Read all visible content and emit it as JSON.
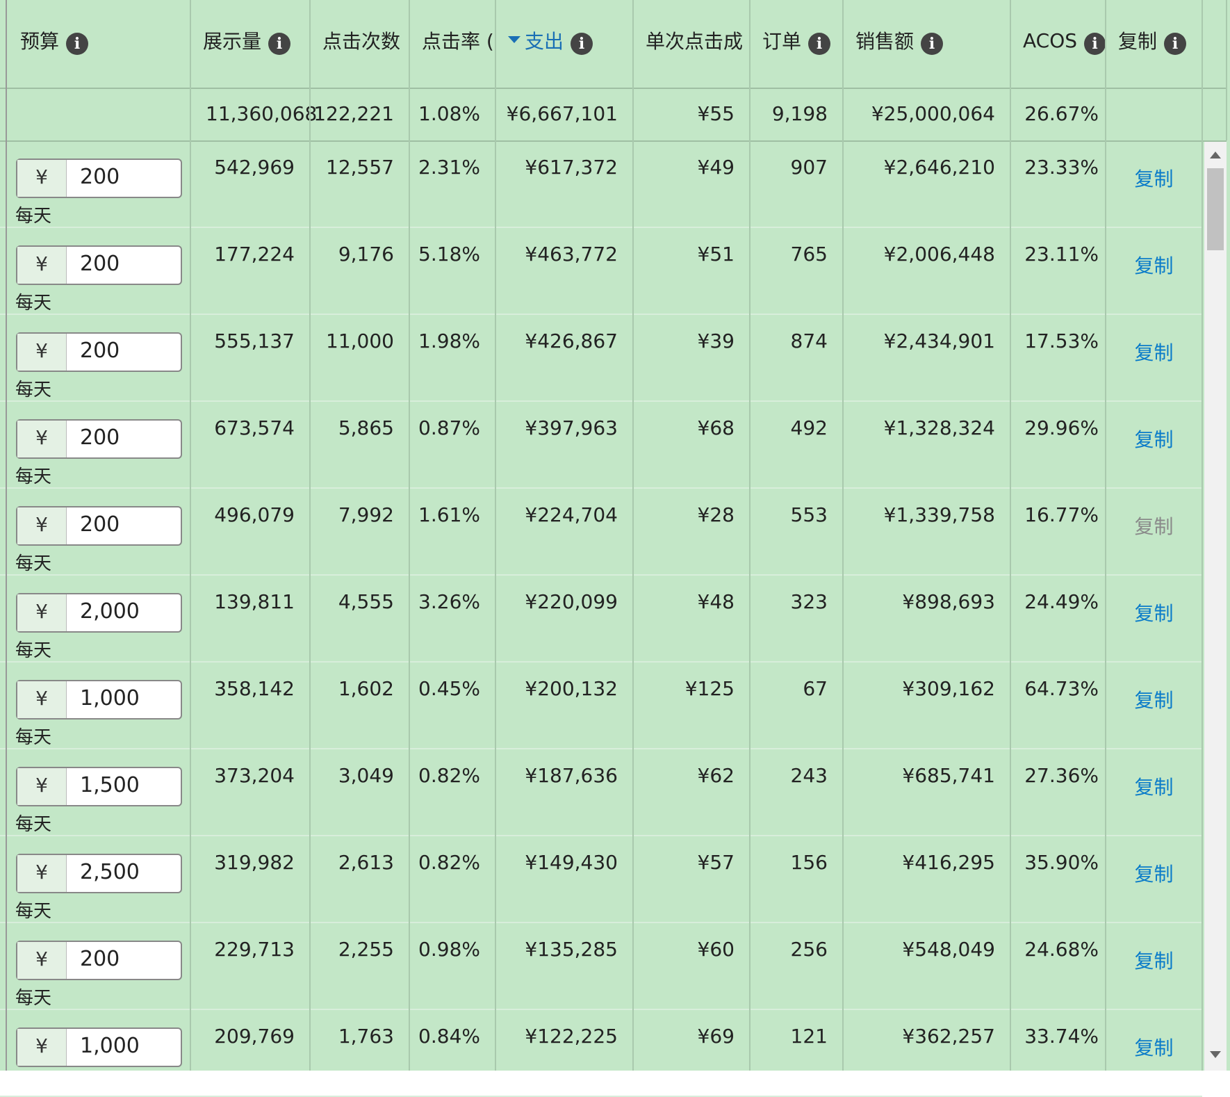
{
  "currency": "¥",
  "header": [
    "预算",
    "展示量",
    "点击次数",
    "点击率 (",
    "支出",
    "单次点击成",
    "订单",
    "销售额",
    "ACOS",
    "复制"
  ],
  "totals": [
    "11,360,068",
    "122,221",
    "1.08%",
    "¥6,667,101",
    "¥55",
    "9,198",
    "¥25,000,064",
    "26.67%"
  ],
  "rows": [
    {
      "budget": "200",
      "period": "每天",
      "cells": [
        "542,969",
        "12,557",
        "2.31%",
        "¥617,372",
        "¥49",
        "907",
        "¥2,646,210",
        "23.33%"
      ],
      "copy": "复制",
      "disabled": false
    },
    {
      "budget": "200",
      "period": "每天",
      "cells": [
        "177,224",
        "9,176",
        "5.18%",
        "¥463,772",
        "¥51",
        "765",
        "¥2,006,448",
        "23.11%"
      ],
      "copy": "复制",
      "disabled": false
    },
    {
      "budget": "200",
      "period": "每天",
      "cells": [
        "555,137",
        "11,000",
        "1.98%",
        "¥426,867",
        "¥39",
        "874",
        "¥2,434,901",
        "17.53%"
      ],
      "copy": "复制",
      "disabled": false
    },
    {
      "budget": "200",
      "period": "每天",
      "cells": [
        "673,574",
        "5,865",
        "0.87%",
        "¥397,963",
        "¥68",
        "492",
        "¥1,328,324",
        "29.96%"
      ],
      "copy": "复制",
      "disabled": false
    },
    {
      "budget": "200",
      "period": "每天",
      "cells": [
        "496,079",
        "7,992",
        "1.61%",
        "¥224,704",
        "¥28",
        "553",
        "¥1,339,758",
        "16.77%"
      ],
      "copy": "复制",
      "disabled": true
    },
    {
      "budget": "2,000",
      "period": "每天",
      "cells": [
        "139,811",
        "4,555",
        "3.26%",
        "¥220,099",
        "¥48",
        "323",
        "¥898,693",
        "24.49%"
      ],
      "copy": "复制",
      "disabled": false
    },
    {
      "budget": "1,000",
      "period": "每天",
      "cells": [
        "358,142",
        "1,602",
        "0.45%",
        "¥200,132",
        "¥125",
        "67",
        "¥309,162",
        "64.73%"
      ],
      "copy": "复制",
      "disabled": false
    },
    {
      "budget": "1,500",
      "period": "每天",
      "cells": [
        "373,204",
        "3,049",
        "0.82%",
        "¥187,636",
        "¥62",
        "243",
        "¥685,741",
        "27.36%"
      ],
      "copy": "复制",
      "disabled": false
    },
    {
      "budget": "2,500",
      "period": "每天",
      "cells": [
        "319,982",
        "2,613",
        "0.82%",
        "¥149,430",
        "¥57",
        "156",
        "¥416,295",
        "35.90%"
      ],
      "copy": "复制",
      "disabled": false
    },
    {
      "budget": "200",
      "period": "每天",
      "cells": [
        "229,713",
        "2,255",
        "0.98%",
        "¥135,285",
        "¥60",
        "256",
        "¥548,049",
        "24.68%"
      ],
      "copy": "复制",
      "disabled": false
    },
    {
      "budget": "1,000",
      "cells": [
        "209,769",
        "1,763",
        "0.84%",
        "¥122,225",
        "¥69",
        "121",
        "¥362,257",
        "33.74%"
      ],
      "copy": "复制",
      "disabled": false
    }
  ]
}
